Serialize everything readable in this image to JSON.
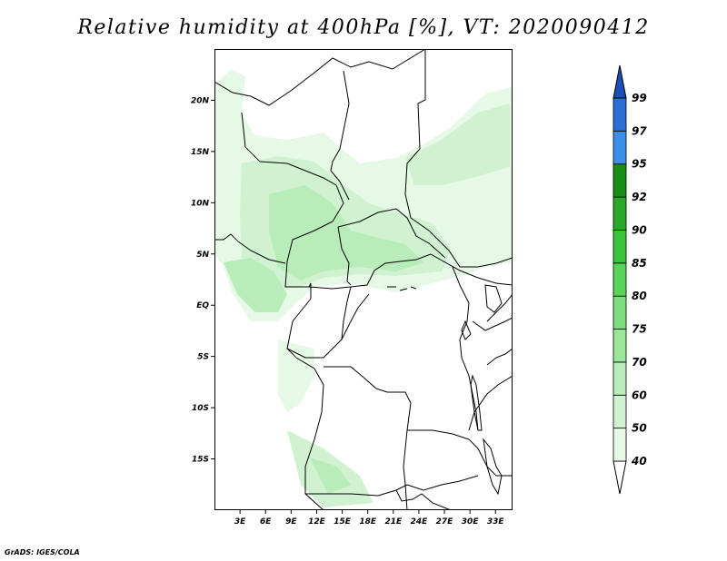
{
  "title": "Relative humidity at 400hPa [%], VT: 2020090412",
  "credit": "GrADS: IGES/COLA",
  "map": {
    "region": "Central Africa",
    "lon_range": [
      0,
      35
    ],
    "lat_range": [
      -20,
      25
    ],
    "x_ticks": [
      "3E",
      "6E",
      "9E",
      "12E",
      "15E",
      "18E",
      "21E",
      "24E",
      "27E",
      "30E",
      "33E"
    ],
    "y_ticks": [
      "20N",
      "15N",
      "10N",
      "5N",
      "EQ",
      "5S",
      "10S",
      "15S"
    ]
  },
  "colorbar": {
    "levels": [
      "40",
      "50",
      "60",
      "70",
      "75",
      "80",
      "85",
      "90",
      "92",
      "95",
      "97",
      "99"
    ],
    "colors": [
      "#e6f8e6",
      "#d0f2d0",
      "#b8ecb8",
      "#9ae69a",
      "#7cde7c",
      "#5ad45a",
      "#3cc43c",
      "#2aa82a",
      "#178f17",
      "#3c8fe6",
      "#2870d6",
      "#1a4fb8"
    ]
  }
}
